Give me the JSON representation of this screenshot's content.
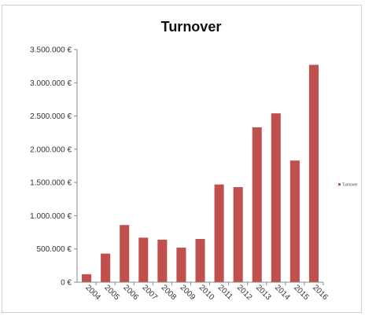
{
  "chart_data": {
    "type": "bar",
    "title": "Turnover",
    "xlabel": "",
    "ylabel": "",
    "categories": [
      "2004",
      "2005",
      "2006",
      "2007",
      "2008",
      "2009",
      "2010",
      "2011",
      "2012",
      "2013",
      "2014",
      "2015",
      "2016"
    ],
    "series": [
      {
        "name": "Turnover",
        "values": [
          120000,
          430000,
          860000,
          670000,
          640000,
          520000,
          650000,
          1470000,
          1430000,
          2330000,
          2540000,
          1830000,
          3270000
        ],
        "color": "#c0504d"
      }
    ],
    "ylim": [
      0,
      3500000
    ],
    "y_ticks": [
      0,
      500000,
      1000000,
      1500000,
      2000000,
      2500000,
      3000000,
      3500000
    ],
    "y_tick_labels": [
      "0 €",
      "500.000 €",
      "1.000.000 €",
      "1.500.000 €",
      "2.000.000 €",
      "2.500.000 €",
      "3.000.000 €",
      "3.500.000 €"
    ],
    "grid": false,
    "legend_position": "right"
  }
}
